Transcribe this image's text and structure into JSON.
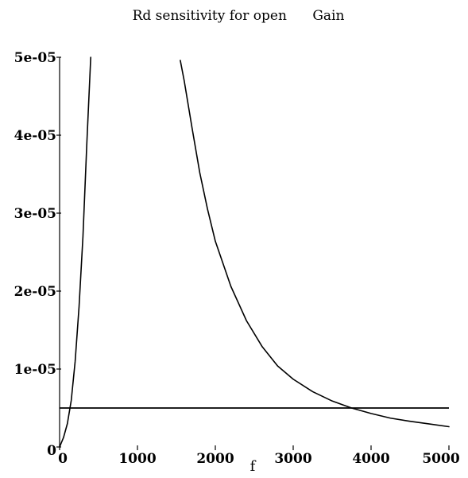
{
  "chart_data": {
    "type": "line",
    "title": "Rd sensitivity for open      Gain",
    "xlabel": "f",
    "ylabel": "",
    "xlim": [
      0,
      5000
    ],
    "ylim": [
      0,
      5e-05
    ],
    "x_ticks": [
      {
        "value": 0,
        "label": "0"
      },
      {
        "value": 1000,
        "label": "1000"
      },
      {
        "value": 2000,
        "label": "2000"
      },
      {
        "value": 3000,
        "label": "3000"
      },
      {
        "value": 4000,
        "label": "4000"
      },
      {
        "value": 5000,
        "label": "5000"
      }
    ],
    "y_ticks": [
      {
        "value": 0,
        "label": "0"
      },
      {
        "value": 1e-05,
        "label": "1e-05"
      },
      {
        "value": 2e-05,
        "label": "2e-05"
      },
      {
        "value": 3e-05,
        "label": "3e-05"
      },
      {
        "value": 4e-05,
        "label": "4e-05"
      },
      {
        "value": 5e-05,
        "label": "5e-05"
      }
    ],
    "grid": false,
    "legend": "none",
    "series": [
      {
        "points": [
          [
            0,
            0
          ],
          [
            50,
            1.2e-06
          ],
          [
            100,
            3e-06
          ],
          [
            150,
            6e-06
          ],
          [
            200,
            1.1e-05
          ],
          [
            250,
            1.8e-05
          ],
          [
            300,
            2.7e-05
          ],
          [
            350,
            3.9e-05
          ],
          [
            400,
            5e-05
          ]
        ]
      },
      {
        "points": [
          [
            1550,
            4.96e-05
          ],
          [
            1600,
            4.7e-05
          ],
          [
            1700,
            4.1e-05
          ],
          [
            1800,
            3.52e-05
          ],
          [
            1900,
            3.05e-05
          ],
          [
            2000,
            2.64e-05
          ],
          [
            2200,
            2.06e-05
          ],
          [
            2400,
            1.62e-05
          ],
          [
            2600,
            1.29e-05
          ],
          [
            2800,
            1.04e-05
          ],
          [
            3000,
            8.7e-06
          ],
          [
            3250,
            7.1e-06
          ],
          [
            3500,
            5.9e-06
          ],
          [
            3750,
            5e-06
          ],
          [
            4000,
            4.3e-06
          ],
          [
            4250,
            3.7e-06
          ],
          [
            4500,
            3.3e-06
          ],
          [
            4750,
            2.95e-06
          ],
          [
            5000,
            2.6e-06
          ]
        ]
      },
      {
        "points": [
          [
            0,
            5e-06
          ],
          [
            5000,
            5e-06
          ]
        ]
      }
    ]
  }
}
